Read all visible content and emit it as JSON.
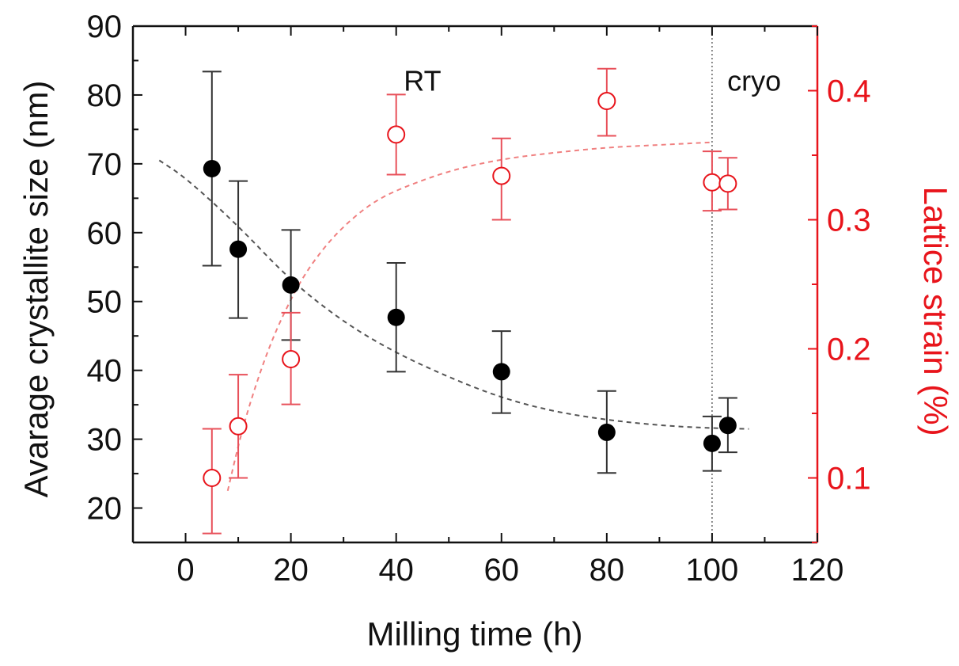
{
  "chart_data": {
    "type": "scatter",
    "xlabel": "Milling time (h)",
    "ylabel_left": "Avarage crystallite size (nm)",
    "ylabel_right": "Lattice strain (%)",
    "xlim": [
      -10,
      120
    ],
    "ylim_left": [
      15,
      90
    ],
    "ylim_right": [
      0.05,
      0.45
    ],
    "x_ticks": [
      0,
      20,
      40,
      60,
      80,
      100,
      120
    ],
    "y_left_ticks": [
      20,
      30,
      40,
      50,
      60,
      70,
      80,
      90
    ],
    "y_right_ticks": [
      0.1,
      0.2,
      0.3,
      0.4
    ],
    "grid": false,
    "annotations": [
      {
        "text": "RT",
        "x": 45,
        "y_left": 82
      },
      {
        "text": "cryo",
        "x": 108,
        "y_left": 82
      }
    ],
    "reference_line": {
      "x": 100,
      "style": "dotted"
    },
    "series": [
      {
        "name": "Average crystallite size",
        "axis": "left",
        "marker": "filled-circle",
        "color": "#000000",
        "points": [
          {
            "x": 5,
            "y": 69.3,
            "err_low": 55.2,
            "err_high": 83.4
          },
          {
            "x": 10,
            "y": 57.6,
            "err_low": 47.6,
            "err_high": 67.5
          },
          {
            "x": 20,
            "y": 52.4,
            "err_low": 44.4,
            "err_high": 60.4
          },
          {
            "x": 40,
            "y": 47.7,
            "err_low": 39.8,
            "err_high": 55.6
          },
          {
            "x": 60,
            "y": 39.8,
            "err_low": 33.8,
            "err_high": 45.7
          },
          {
            "x": 80,
            "y": 31.0,
            "err_low": 25.1,
            "err_high": 37.0
          },
          {
            "x": 100,
            "y": 29.4,
            "err_low": 25.4,
            "err_high": 33.3
          },
          {
            "x": 103,
            "y": 32.0,
            "err_low": 28.1,
            "err_high": 36.0
          }
        ],
        "fit_curve": {
          "style": "dashed",
          "color": "#555555",
          "x": [
            -5,
            0,
            10,
            20,
            30,
            40,
            50,
            60,
            70,
            80,
            90,
            100,
            107
          ],
          "y": [
            70.5,
            68.0,
            61.0,
            53.0,
            47.0,
            42.5,
            39.0,
            36.0,
            34.0,
            32.8,
            32.0,
            31.6,
            31.5
          ]
        }
      },
      {
        "name": "Lattice strain",
        "axis": "right",
        "marker": "open-circle",
        "color": "#e8141b",
        "points": [
          {
            "x": 5,
            "y": 0.1,
            "err_low": 0.057,
            "err_high": 0.138
          },
          {
            "x": 10,
            "y": 0.14,
            "err_low": 0.1,
            "err_high": 0.18
          },
          {
            "x": 20,
            "y": 0.192,
            "err_low": 0.157,
            "err_high": 0.228
          },
          {
            "x": 40,
            "y": 0.366,
            "err_low": 0.335,
            "err_high": 0.397
          },
          {
            "x": 60,
            "y": 0.334,
            "err_low": 0.3,
            "err_high": 0.363
          },
          {
            "x": 80,
            "y": 0.392,
            "err_low": 0.365,
            "err_high": 0.417
          },
          {
            "x": 100,
            "y": 0.329,
            "err_low": 0.307,
            "err_high": 0.353
          },
          {
            "x": 103,
            "y": 0.328,
            "err_low": 0.308,
            "err_high": 0.348
          }
        ],
        "fit_curve": {
          "style": "dashed",
          "color": "#f08080",
          "x": [
            8,
            10,
            12,
            15,
            18,
            22,
            26,
            30,
            35,
            40,
            50,
            60,
            70,
            80,
            90,
            100
          ],
          "y": [
            0.09,
            0.125,
            0.155,
            0.192,
            0.222,
            0.254,
            0.277,
            0.295,
            0.312,
            0.323,
            0.338,
            0.347,
            0.352,
            0.356,
            0.358,
            0.36
          ]
        }
      }
    ]
  }
}
